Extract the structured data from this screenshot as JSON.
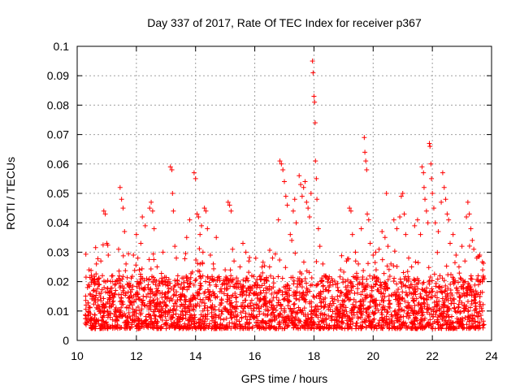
{
  "chart_data": {
    "type": "scatter",
    "title": "Day 337 of 2017, Rate Of TEC Index for receiver p367",
    "xlabel": "GPS time / hours",
    "ylabel": "ROTI / TECUs",
    "xlim": [
      10,
      24
    ],
    "ylim": [
      0,
      0.1
    ],
    "xticks": [
      10,
      12,
      14,
      16,
      18,
      20,
      22,
      24
    ],
    "xtick_labels": [
      "10",
      "12",
      "14",
      "16",
      "18",
      "20",
      "22",
      "24"
    ],
    "yticks": [
      0,
      0.01,
      0.02,
      0.03,
      0.04,
      0.05,
      0.06,
      0.07,
      0.08,
      0.09,
      0.1
    ],
    "ytick_labels": [
      "0",
      "0.01",
      "0.02",
      "0.03",
      "0.04",
      "0.05",
      "0.06",
      "0.07",
      "0.08",
      "0.09",
      "0.1"
    ],
    "grid": true,
    "marker": "+",
    "series_color": "#ff0000",
    "data_range": {
      "x_start": 10.25,
      "x_end": 23.75
    },
    "series": [
      {
        "name": "ROTI",
        "points": [
          [
            10.3,
            0.012
          ],
          [
            10.35,
            0.018
          ],
          [
            10.4,
            0.024
          ],
          [
            10.45,
            0.009
          ],
          [
            10.5,
            0.021
          ],
          [
            10.55,
            0.015
          ],
          [
            10.6,
            0.004
          ],
          [
            10.65,
            0.026
          ],
          [
            10.7,
            0.011
          ],
          [
            10.75,
            0.019
          ],
          [
            10.8,
            0.027
          ],
          [
            10.85,
            0.008
          ],
          [
            10.9,
            0.044
          ],
          [
            10.95,
            0.043
          ],
          [
            11.0,
            0.033
          ],
          [
            11.05,
            0.029
          ],
          [
            11.1,
            0.014
          ],
          [
            11.2,
            0.022
          ],
          [
            11.3,
            0.017
          ],
          [
            11.4,
            0.031
          ],
          [
            11.45,
            0.052
          ],
          [
            11.5,
            0.048
          ],
          [
            11.55,
            0.045
          ],
          [
            11.6,
            0.037
          ],
          [
            11.65,
            0.026
          ],
          [
            11.7,
            0.019
          ],
          [
            11.8,
            0.013
          ],
          [
            11.9,
            0.029
          ],
          [
            12.0,
            0.036
          ],
          [
            12.05,
            0.028
          ],
          [
            12.1,
            0.024
          ],
          [
            12.15,
            0.033
          ],
          [
            12.2,
            0.042
          ],
          [
            12.3,
            0.039
          ],
          [
            12.35,
            0.021
          ],
          [
            12.45,
            0.045
          ],
          [
            12.5,
            0.047
          ],
          [
            12.55,
            0.044
          ],
          [
            12.6,
            0.038
          ],
          [
            12.7,
            0.025
          ],
          [
            12.8,
            0.016
          ],
          [
            12.9,
            0.03
          ],
          [
            13.0,
            0.012
          ],
          [
            13.05,
            0.02
          ],
          [
            13.15,
            0.059
          ],
          [
            13.2,
            0.058
          ],
          [
            13.22,
            0.05
          ],
          [
            13.25,
            0.044
          ],
          [
            13.3,
            0.032
          ],
          [
            13.35,
            0.028
          ],
          [
            13.4,
            0.022
          ],
          [
            13.5,
            0.015
          ],
          [
            13.6,
            0.018
          ],
          [
            13.7,
            0.035
          ],
          [
            13.8,
            0.041
          ],
          [
            13.95,
            0.057
          ],
          [
            14.0,
            0.055
          ],
          [
            14.05,
            0.043
          ],
          [
            14.1,
            0.042
          ],
          [
            14.15,
            0.036
          ],
          [
            14.2,
            0.039
          ],
          [
            14.25,
            0.03
          ],
          [
            14.3,
            0.045
          ],
          [
            14.35,
            0.044
          ],
          [
            14.4,
            0.038
          ],
          [
            14.5,
            0.029
          ],
          [
            14.6,
            0.026
          ],
          [
            14.7,
            0.035
          ],
          [
            14.8,
            0.021
          ],
          [
            14.9,
            0.019
          ],
          [
            15.0,
            0.024
          ],
          [
            15.1,
            0.047
          ],
          [
            15.15,
            0.046
          ],
          [
            15.2,
            0.044
          ],
          [
            15.25,
            0.031
          ],
          [
            15.3,
            0.027
          ],
          [
            15.4,
            0.018
          ],
          [
            15.5,
            0.025
          ],
          [
            15.6,
            0.033
          ],
          [
            15.7,
            0.03
          ],
          [
            15.8,
            0.027
          ],
          [
            15.9,
            0.022
          ],
          [
            16.0,
            0.016
          ],
          [
            16.1,
            0.019
          ],
          [
            16.2,
            0.014
          ],
          [
            16.3,
            0.017
          ],
          [
            16.4,
            0.021
          ],
          [
            16.5,
            0.025
          ],
          [
            16.6,
            0.028
          ],
          [
            16.8,
            0.041
          ],
          [
            16.85,
            0.061
          ],
          [
            16.9,
            0.06
          ],
          [
            16.95,
            0.058
          ],
          [
            17.0,
            0.054
          ],
          [
            17.05,
            0.049
          ],
          [
            17.1,
            0.046
          ],
          [
            17.2,
            0.036
          ],
          [
            17.25,
            0.034
          ],
          [
            17.3,
            0.044
          ],
          [
            17.35,
            0.048
          ],
          [
            17.4,
            0.04
          ],
          [
            17.5,
            0.056
          ],
          [
            17.55,
            0.053
          ],
          [
            17.6,
            0.049
          ],
          [
            17.65,
            0.052
          ],
          [
            17.7,
            0.054
          ],
          [
            17.75,
            0.047
          ],
          [
            17.8,
            0.045
          ],
          [
            17.85,
            0.042
          ],
          [
            17.9,
            0.05
          ],
          [
            17.95,
            0.095
          ],
          [
            17.97,
            0.091
          ],
          [
            18.0,
            0.083
          ],
          [
            18.02,
            0.081
          ],
          [
            18.04,
            0.074
          ],
          [
            18.05,
            0.061
          ],
          [
            18.08,
            0.055
          ],
          [
            18.1,
            0.048
          ],
          [
            18.15,
            0.038
          ],
          [
            18.2,
            0.032
          ],
          [
            18.3,
            0.026
          ],
          [
            18.4,
            0.022
          ],
          [
            18.5,
            0.017
          ],
          [
            18.6,
            0.021
          ],
          [
            18.7,
            0.014
          ],
          [
            18.8,
            0.018
          ],
          [
            18.9,
            0.024
          ],
          [
            19.0,
            0.012
          ],
          [
            19.1,
            0.027
          ],
          [
            19.2,
            0.045
          ],
          [
            19.25,
            0.044
          ],
          [
            19.3,
            0.036
          ],
          [
            19.4,
            0.03
          ],
          [
            19.5,
            0.026
          ],
          [
            19.6,
            0.038
          ],
          [
            19.7,
            0.069
          ],
          [
            19.72,
            0.064
          ],
          [
            19.75,
            0.061
          ],
          [
            19.78,
            0.058
          ],
          [
            19.8,
            0.043
          ],
          [
            19.85,
            0.041
          ],
          [
            19.9,
            0.033
          ],
          [
            20.0,
            0.029
          ],
          [
            20.1,
            0.024
          ],
          [
            20.2,
            0.031
          ],
          [
            20.3,
            0.037
          ],
          [
            20.4,
            0.035
          ],
          [
            20.45,
            0.05
          ],
          [
            20.5,
            0.032
          ],
          [
            20.6,
            0.026
          ],
          [
            20.7,
            0.041
          ],
          [
            20.8,
            0.038
          ],
          [
            20.9,
            0.042
          ],
          [
            20.95,
            0.049
          ],
          [
            21.0,
            0.05
          ],
          [
            21.05,
            0.043
          ],
          [
            21.1,
            0.036
          ],
          [
            21.2,
            0.028
          ],
          [
            21.3,
            0.025
          ],
          [
            21.4,
            0.039
          ],
          [
            21.5,
            0.041
          ],
          [
            21.6,
            0.036
          ],
          [
            21.65,
            0.059
          ],
          [
            21.7,
            0.057
          ],
          [
            21.72,
            0.052
          ],
          [
            21.75,
            0.048
          ],
          [
            21.8,
            0.044
          ],
          [
            21.85,
            0.04
          ],
          [
            21.9,
            0.067
          ],
          [
            21.92,
            0.066
          ],
          [
            21.95,
            0.06
          ],
          [
            21.97,
            0.055
          ],
          [
            22.0,
            0.05
          ],
          [
            22.05,
            0.045
          ],
          [
            22.1,
            0.04
          ],
          [
            22.2,
            0.037
          ],
          [
            22.3,
            0.047
          ],
          [
            22.35,
            0.057
          ],
          [
            22.4,
            0.052
          ],
          [
            22.45,
            0.048
          ],
          [
            22.5,
            0.043
          ],
          [
            22.55,
            0.041
          ],
          [
            22.6,
            0.033
          ],
          [
            22.7,
            0.036
          ],
          [
            22.8,
            0.029
          ],
          [
            22.9,
            0.025
          ],
          [
            23.0,
            0.032
          ],
          [
            23.1,
            0.027
          ],
          [
            23.15,
            0.042
          ],
          [
            23.2,
            0.047
          ],
          [
            23.25,
            0.043
          ],
          [
            23.3,
            0.038
          ],
          [
            23.35,
            0.034
          ],
          [
            23.4,
            0.031
          ],
          [
            23.5,
            0.028
          ],
          [
            23.6,
            0.029
          ],
          [
            23.7,
            0.024
          ],
          [
            23.75,
            0.021
          ]
        ]
      }
    ]
  }
}
